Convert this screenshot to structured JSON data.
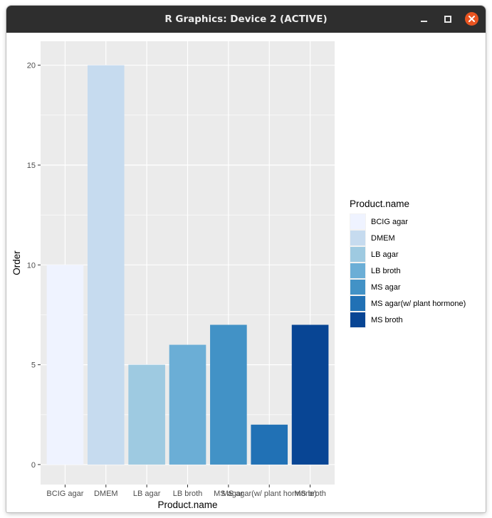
{
  "window": {
    "title": "R Graphics: Device 2 (ACTIVE)",
    "buttons": {
      "minimize": "minimize-icon",
      "maximize": "maximize-icon",
      "close": "close-icon"
    }
  },
  "colors": {
    "panel_bg": "#ebebeb",
    "grid_major": "#ffffff",
    "text_dark": "#4d4d4d",
    "title_bar": "#2e2e2e",
    "close_btn": "#e95420"
  },
  "chart_data": {
    "type": "bar",
    "categories": [
      "BCIG agar",
      "DMEM",
      "LB agar",
      "LB broth",
      "MS agar",
      "MS agar(w/ plant hormone)",
      "MS broth"
    ],
    "values": [
      10,
      20,
      5,
      6,
      7,
      2,
      7
    ],
    "colors": [
      "#eff3ff",
      "#c6dbef",
      "#9ecae1",
      "#6baed6",
      "#4292c6",
      "#2171b5",
      "#084594"
    ],
    "xlabel": "Product.name",
    "ylabel": "Order",
    "ylim": [
      -1,
      21.2
    ],
    "yticks": [
      0,
      5,
      10,
      15,
      20
    ],
    "grid": true,
    "legend": {
      "title": "Product.name",
      "placement": "right",
      "entries": [
        "BCIG agar",
        "DMEM",
        "LB agar",
        "LB broth",
        "MS agar",
        "MS agar(w/ plant hormone)",
        "MS broth"
      ]
    }
  }
}
